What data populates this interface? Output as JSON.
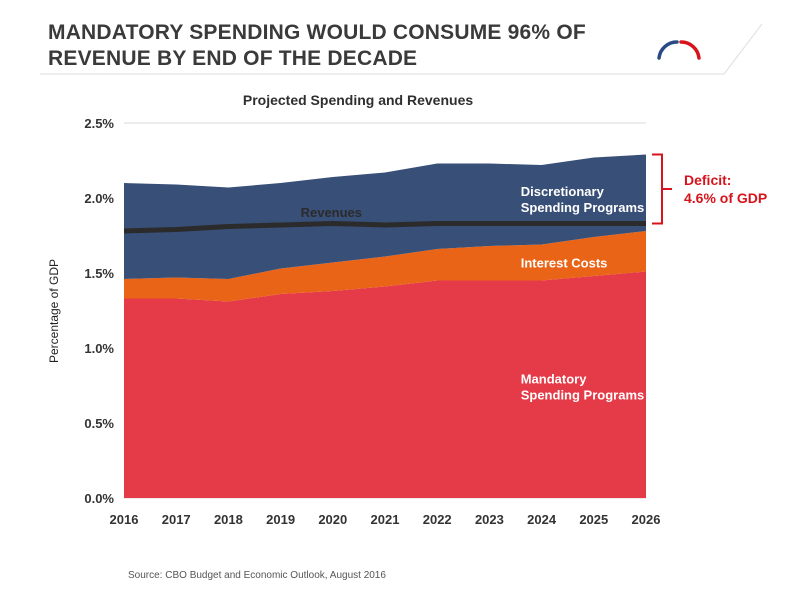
{
  "headline": {
    "line1": "MANDATORY SPENDING WOULD CONSUME 96% OF",
    "line2": "REVENUE BY END OF THE DECADE"
  },
  "source": "Source: CBO Budget and Economic Outlook, August 2016",
  "colors": {
    "mandatory": "#e53a47",
    "interest": "#ea6418",
    "discretionary": "#384f78",
    "revenues": "#2b2b2b",
    "deficit": "#d7141c"
  },
  "chart_data": {
    "type": "area",
    "title": "Projected Spending and Revenues",
    "ylabel": "Percentage of GDP",
    "xlabel": "",
    "x": [
      "2016",
      "2017",
      "2018",
      "2019",
      "2020",
      "2021",
      "2022",
      "2023",
      "2024",
      "2025",
      "2026"
    ],
    "y_ticks": [
      "0.0%",
      "0.5%",
      "1.0%",
      "1.5%",
      "2.0%",
      "2.5%"
    ],
    "ylim": [
      0,
      2.5
    ],
    "stacked": true,
    "grid": true,
    "series": [
      {
        "name": "Mandatory Spending Programs",
        "label_lines": [
          "Mandatory",
          "Spending Programs"
        ],
        "values": [
          1.33,
          1.33,
          1.31,
          1.36,
          1.38,
          1.41,
          1.45,
          1.45,
          1.45,
          1.48,
          1.51
        ]
      },
      {
        "name": "Interest Costs",
        "label_lines": [
          "Interest Costs"
        ],
        "values": [
          0.13,
          0.14,
          0.15,
          0.17,
          0.19,
          0.2,
          0.21,
          0.23,
          0.24,
          0.26,
          0.27
        ]
      },
      {
        "name": "Discretionary Spending Programs",
        "label_lines": [
          "Discretionary",
          "Spending Programs"
        ],
        "values": [
          0.64,
          0.62,
          0.61,
          0.57,
          0.57,
          0.56,
          0.57,
          0.55,
          0.53,
          0.53,
          0.51
        ]
      }
    ],
    "line_series": {
      "name": "Revenues",
      "values": [
        1.78,
        1.79,
        1.81,
        1.82,
        1.83,
        1.82,
        1.83,
        1.83,
        1.83,
        1.83,
        1.83
      ]
    },
    "annotation": {
      "lines": [
        "Deficit:",
        "4.6% of GDP"
      ]
    }
  }
}
